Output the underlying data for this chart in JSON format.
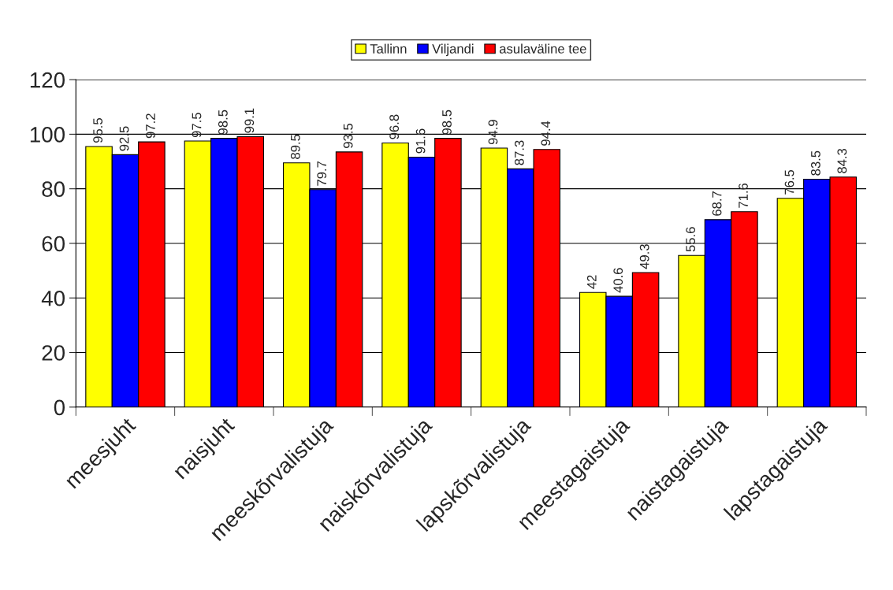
{
  "chart_data": {
    "type": "bar",
    "categories": [
      "meesjuht",
      "naisjuht",
      "meeskõrvalistuja",
      "naiskõrvalistuja",
      "lapskõrvalistuja",
      "meestagaistuja",
      "naistagaistuja",
      "lapstagaistuja"
    ],
    "series": [
      {
        "name": "Tallinn",
        "color": "#ffff00",
        "values": [
          95.5,
          97.5,
          89.5,
          96.8,
          94.9,
          42,
          55.6,
          76.5
        ]
      },
      {
        "name": "Viljandi",
        "color": "#0000ff",
        "values": [
          92.5,
          98.5,
          79.7,
          91.6,
          87.3,
          40.6,
          68.7,
          83.5
        ]
      },
      {
        "name": "asulaväline tee",
        "color": "#ff0000",
        "values": [
          97.2,
          99.1,
          93.5,
          98.5,
          94.4,
          49.3,
          71.6,
          84.3
        ]
      }
    ],
    "ylim": [
      0,
      120
    ],
    "yticks": [
      0,
      20,
      40,
      60,
      80,
      100,
      120
    ],
    "grid": "y",
    "legend": "top",
    "data_labels": true
  }
}
